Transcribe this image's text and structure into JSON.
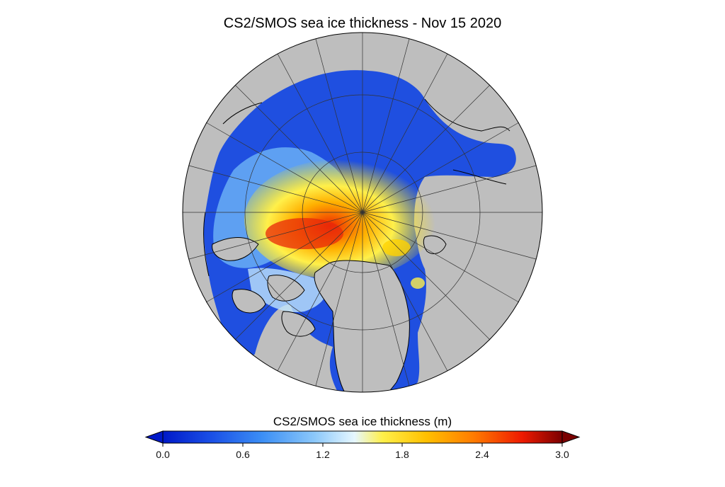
{
  "title": "CS2/SMOS sea ice thickness - Nov 15 2020",
  "colorbar": {
    "label": "CS2/SMOS sea ice thickness (m)",
    "ticks": [
      "0.0",
      "0.6",
      "1.2",
      "1.8",
      "2.4",
      "3.0"
    ],
    "range": [
      0.0,
      3.0
    ],
    "extend": "both",
    "colors": [
      "#0019c8",
      "#1a4fe6",
      "#3c8ff5",
      "#8cc8fa",
      "#e6f7ff",
      "#fff04a",
      "#ffc000",
      "#ff7a00",
      "#ee1a00",
      "#7a0000"
    ]
  },
  "map": {
    "projection": "polar stereographic (north)",
    "land_color": "#bebebe"
  }
}
